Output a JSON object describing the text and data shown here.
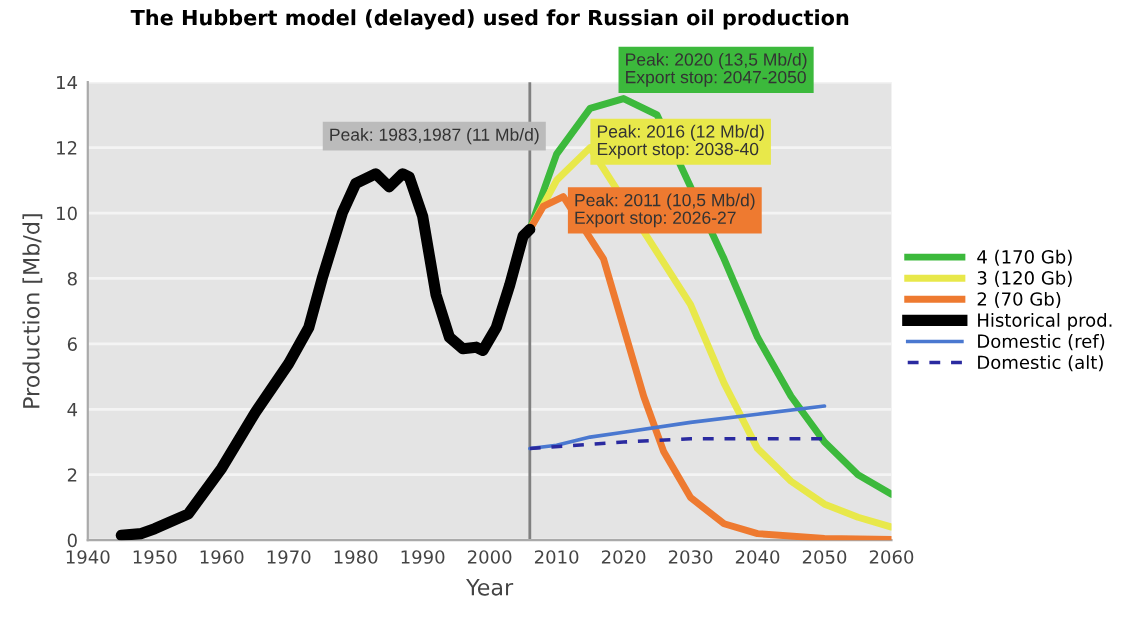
{
  "chart_data": {
    "type": "line",
    "title": "The Hubbert model (delayed) used for Russian oil production",
    "xlabel": "Year",
    "ylabel": "Production [Mb/d]",
    "series": [
      {
        "name": "4 (170 Gb)",
        "color": "#3cb93c",
        "x": [
          2006,
          2010,
          2015,
          2020,
          2025,
          2035,
          2040,
          2045,
          2050,
          2055,
          2060
        ],
        "values": [
          9.5,
          11.8,
          13.2,
          13.5,
          13.0,
          8.6,
          6.2,
          4.4,
          3.0,
          2.0,
          1.4
        ]
      },
      {
        "name": "3 (120 Gb)",
        "color": "#e8e84a",
        "x": [
          2006,
          2010,
          2015,
          2030,
          2035,
          2040,
          2045,
          2050,
          2055,
          2060
        ],
        "values": [
          9.5,
          11.0,
          12.0,
          7.2,
          4.8,
          2.8,
          1.8,
          1.1,
          0.7,
          0.4
        ]
      },
      {
        "name": "2 (70 Gb)",
        "color": "#ee7a30",
        "x": [
          2006,
          2008,
          2011,
          2017,
          2020,
          2023,
          2026,
          2030,
          2035,
          2040,
          2050,
          2060
        ],
        "values": [
          9.5,
          10.2,
          10.5,
          8.6,
          6.5,
          4.4,
          2.7,
          1.3,
          0.5,
          0.2,
          0.05,
          0.02
        ]
      },
      {
        "name": "Historical prod.",
        "color": "#000000",
        "x": [
          1945,
          1948,
          1950,
          1955,
          1960,
          1965,
          1970,
          1973,
          1975,
          1978,
          1980,
          1983,
          1985,
          1987,
          1988,
          1990,
          1992,
          1994,
          1996,
          1998,
          1999,
          2001,
          2003,
          2005,
          2006
        ],
        "values": [
          0.15,
          0.2,
          0.35,
          0.8,
          2.2,
          3.9,
          5.4,
          6.5,
          8.0,
          10.0,
          10.9,
          11.2,
          10.8,
          11.2,
          11.1,
          9.9,
          7.5,
          6.2,
          5.85,
          5.9,
          5.8,
          6.5,
          7.8,
          9.3,
          9.5
        ]
      },
      {
        "name": "Domestic (ref)",
        "color": "#4a78d0",
        "x": [
          2006,
          2010,
          2015,
          2020,
          2030,
          2040,
          2050
        ],
        "values": [
          2.8,
          2.9,
          3.15,
          3.3,
          3.6,
          3.85,
          4.1
        ]
      },
      {
        "name": "Domestic (alt)",
        "color": "#2a2aa0",
        "line_style": "dashed",
        "x": [
          2006,
          2020,
          2030,
          2050
        ],
        "values": [
          2.8,
          3.0,
          3.1,
          3.1
        ]
      }
    ],
    "annotations": [
      "Peak: 2020 (13,5 Mb/d)\nExport stop: 2047-2050",
      "Peak: 2016 (12 Mb/d)\nExport stop: 2038-40",
      "Peak: 2011 (10,5 Mb/d)\nExport stop: 2026-27",
      "Peak: 1983,1987 (11 Mb/d)"
    ],
    "ref_lines": [
      {
        "axis": "x",
        "value": 2006,
        "color": "#808080"
      }
    ],
    "xlim": [
      1940,
      2060
    ],
    "xticks": [
      1940,
      1950,
      1960,
      1970,
      1980,
      1990,
      2000,
      2010,
      2020,
      2030,
      2040,
      2050,
      2060
    ],
    "ylim": [
      0,
      14
    ],
    "yticks": [
      0,
      2,
      4,
      6,
      8,
      10,
      12,
      14
    ],
    "grid": "y",
    "legend": "right"
  }
}
